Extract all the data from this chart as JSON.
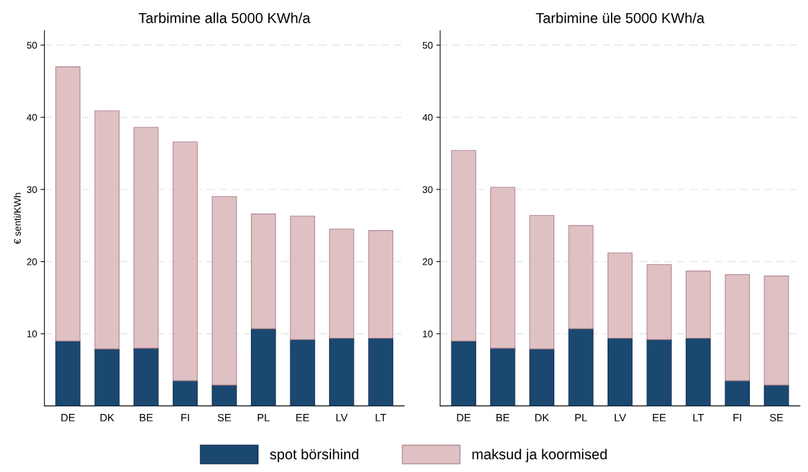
{
  "chart_data": [
    {
      "type": "bar",
      "title": "Tarbimine alla 5000 KWh/a",
      "ylabel": "€ senti/KWh",
      "categories": [
        "DE",
        "DK",
        "BE",
        "FI",
        "SE",
        "PL",
        "EE",
        "LV",
        "LT"
      ],
      "stacked": true,
      "ylim": [
        0,
        52
      ],
      "yticks": [
        10,
        20,
        30,
        40,
        50
      ],
      "grid": "y",
      "series": [
        {
          "color": "#1b4870",
          "values": [
            9.0,
            7.9,
            8.0,
            3.5,
            2.9,
            10.7,
            9.2,
            9.4,
            9.4
          ]
        },
        {
          "color": "#dfc1c4",
          "values": [
            38.0,
            33.0,
            30.6,
            33.1,
            26.1,
            15.9,
            17.1,
            15.1,
            14.9
          ]
        }
      ]
    },
    {
      "type": "bar",
      "title": "Tarbimine üle 5000 KWh/a",
      "categories": [
        "DE",
        "BE",
        "DK",
        "PL",
        "LV",
        "EE",
        "LT",
        "FI",
        "SE"
      ],
      "stacked": true,
      "ylim": [
        0,
        52
      ],
      "yticks": [
        10,
        20,
        30,
        40,
        50
      ],
      "grid": "y",
      "legend": "bottom",
      "series": [
        {
          "name": "spot börsihind",
          "color": "#1b4870",
          "values": [
            9.0,
            8.0,
            7.9,
            10.7,
            9.4,
            9.2,
            9.4,
            3.5,
            2.9
          ]
        },
        {
          "name": "maksud ja koormised",
          "color": "#dfc1c4",
          "values": [
            26.4,
            22.3,
            18.5,
            14.3,
            11.8,
            10.4,
            9.3,
            14.7,
            15.1
          ]
        }
      ]
    }
  ]
}
